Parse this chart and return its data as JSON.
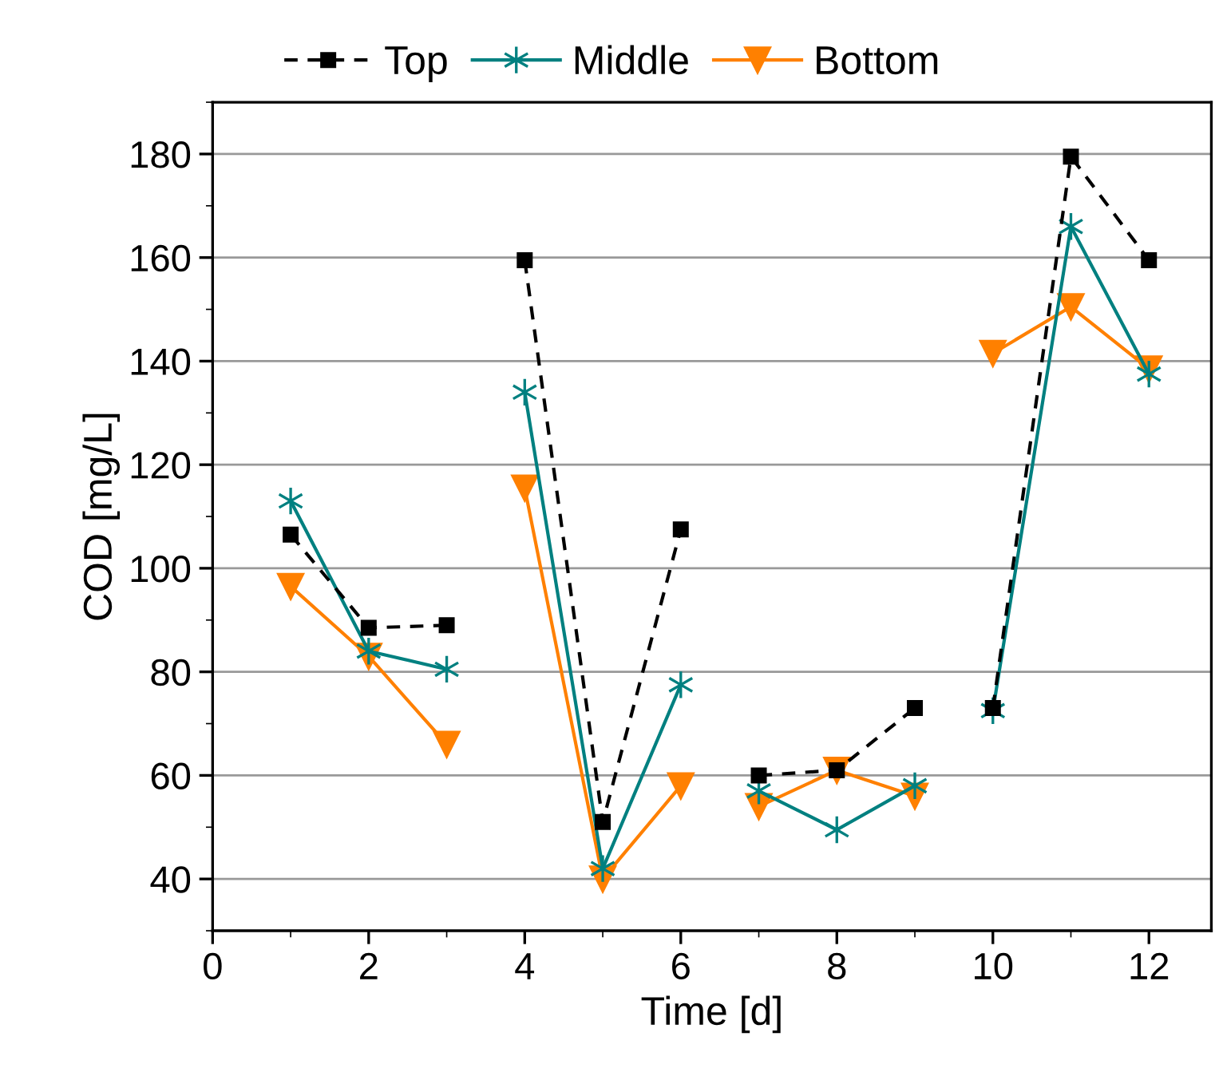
{
  "chart_data": {
    "type": "line",
    "xlabel": "Time [d]",
    "ylabel": "COD [mg/L]",
    "x": [
      1,
      2,
      3,
      3.5,
      4,
      5,
      6,
      6.5,
      7,
      8,
      9,
      9.5,
      10,
      11,
      12
    ],
    "series": [
      {
        "name": "Top",
        "color": "#000000",
        "marker": "square",
        "line_style": "dashed",
        "values": [
          106.5,
          88.5,
          89,
          null,
          159.5,
          51,
          107.5,
          null,
          60,
          61,
          73,
          null,
          73,
          179.5,
          159.5
        ]
      },
      {
        "name": "Middle",
        "color": "#008080",
        "marker": "cross",
        "line_style": "solid",
        "values": [
          113,
          84,
          80.5,
          null,
          134,
          42,
          77.5,
          null,
          57,
          49.5,
          58,
          null,
          72.5,
          166,
          137.5
        ]
      },
      {
        "name": "Bottom",
        "color": "#ff8000",
        "marker": "triangle",
        "line_style": "solid",
        "values": [
          96.5,
          83,
          66,
          null,
          115.5,
          40,
          58,
          null,
          54,
          61,
          56,
          null,
          141.5,
          150.5,
          138.5
        ]
      }
    ],
    "xlim": [
      0,
      12.8
    ],
    "xticks": [
      0,
      2,
      4,
      6,
      8,
      10,
      12
    ],
    "ylim": [
      30,
      190
    ],
    "yticks": [
      40,
      60,
      80,
      100,
      120,
      140,
      160,
      180
    ],
    "grid": "y",
    "legend": "top"
  }
}
